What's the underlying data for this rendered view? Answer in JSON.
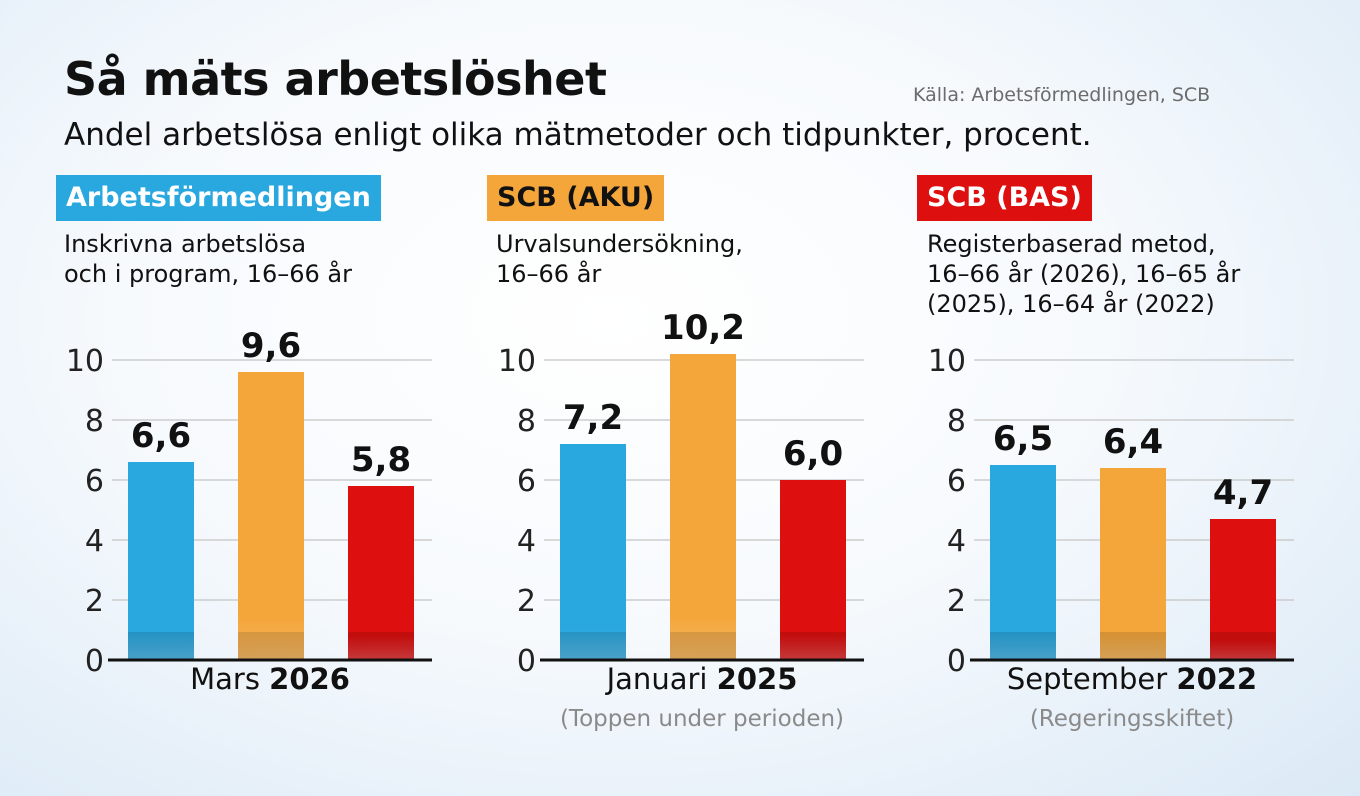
{
  "title": "Så mäts arbetslöshet",
  "source": "Källa: Arbetsförmedlingen, SCB",
  "subtitle": "Andel arbetslösa enligt olika mätmetoder och tidpunkter, procent.",
  "panels": [
    {
      "badge": "Arbetsförmedlingen",
      "badge_color": "#29a7df",
      "badge_text_color": "#ffffff",
      "desc": [
        "Inskrivna arbetslösa",
        "och i program, 16–66 år"
      ],
      "period_month": "Mars",
      "period_year": "2026",
      "note": ""
    },
    {
      "badge": "SCB (AKU)",
      "badge_color": "#f4a63b",
      "badge_text_color": "#111111",
      "desc": [
        "Urvalsundersökning,",
        "16–66 år"
      ],
      "period_month": "Januari",
      "period_year": "2025",
      "note": "(Toppen under perioden)"
    },
    {
      "badge": "SCB (BAS)",
      "badge_color": "#dd0f0f",
      "badge_text_color": "#ffffff",
      "desc": [
        "Registerbaserad metod,",
        "16–66 år (2026), 16–65 år",
        "(2025), 16–64 år (2022)"
      ],
      "period_month": "September",
      "period_year": "2022",
      "note": "(Regeringsskiftet)"
    }
  ],
  "chart_data": [
    {
      "type": "bar",
      "categories": [
        "Arbetsförmedlingen",
        "SCB (AKU)",
        "SCB (BAS)"
      ],
      "values": [
        6.6,
        9.6,
        5.8
      ],
      "value_labels": [
        "6,6",
        "9,6",
        "5,8"
      ],
      "colors": [
        "#29a7df",
        "#f4a63b",
        "#dd0f0f"
      ],
      "xlabel": "Mars 2026",
      "ylim": [
        0,
        10
      ],
      "yticks": [
        0,
        2,
        4,
        6,
        8,
        10
      ],
      "grid": true
    },
    {
      "type": "bar",
      "categories": [
        "Arbetsförmedlingen",
        "SCB (AKU)",
        "SCB (BAS)"
      ],
      "values": [
        7.2,
        10.2,
        6.0
      ],
      "value_labels": [
        "7,2",
        "10,2",
        "6,0"
      ],
      "colors": [
        "#29a7df",
        "#f4a63b",
        "#dd0f0f"
      ],
      "xlabel": "Januari 2025",
      "ylim": [
        0,
        10
      ],
      "yticks": [
        0,
        2,
        4,
        6,
        8,
        10
      ],
      "grid": true
    },
    {
      "type": "bar",
      "categories": [
        "Arbetsförmedlingen",
        "SCB (AKU)",
        "SCB (BAS)"
      ],
      "values": [
        6.5,
        6.4,
        4.7
      ],
      "value_labels": [
        "6,5",
        "6,4",
        "4,7"
      ],
      "colors": [
        "#29a7df",
        "#f4a63b",
        "#dd0f0f"
      ],
      "xlabel": "September 2022",
      "ylim": [
        0,
        10
      ],
      "yticks": [
        0,
        2,
        4,
        6,
        8,
        10
      ],
      "grid": true
    }
  ]
}
